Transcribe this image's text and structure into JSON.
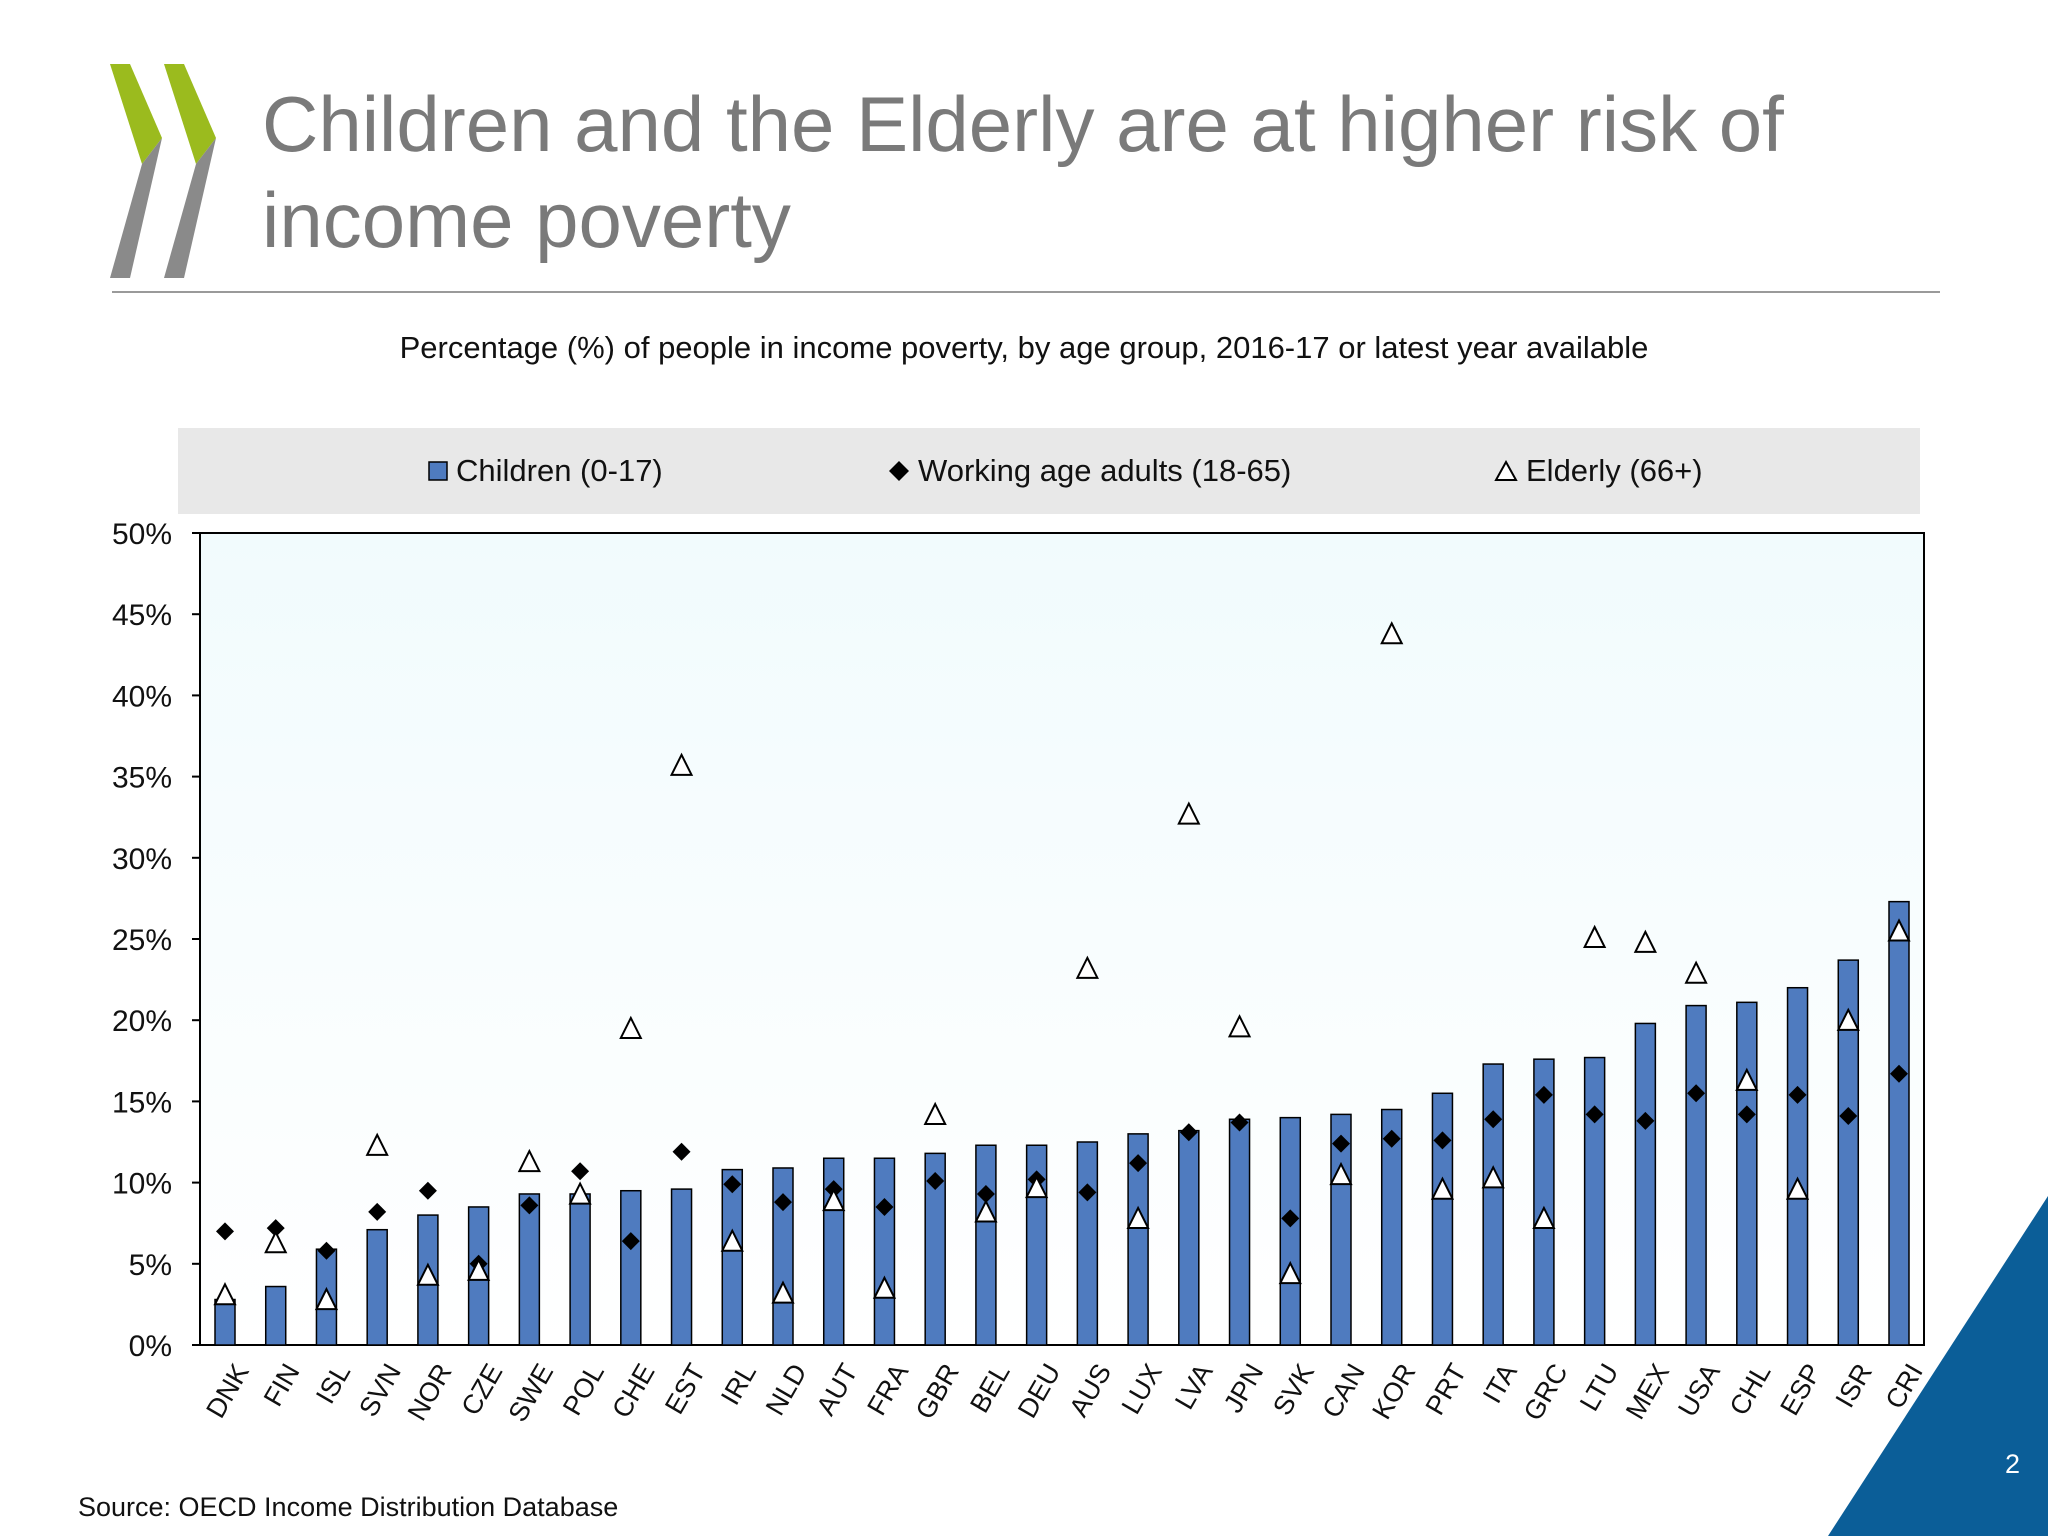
{
  "slide": {
    "title": "Children and the Elderly are at higher risk of income poverty",
    "source": "Source: OECD Income Distribution Database",
    "page_number": "2",
    "colors": {
      "title": "#7a7a7a",
      "logo_green": "#9bbb1e",
      "logo_grey": "#8a8a8a",
      "corner_blue": "#0b5e98"
    }
  },
  "chart_data": {
    "type": "bar",
    "title": "Percentage (%) of people in income poverty, by age group, 2016-17 or latest year available",
    "xlabel": "",
    "ylabel": "",
    "ylim": [
      0,
      50
    ],
    "yticks": [
      "0%",
      "5%",
      "10%",
      "15%",
      "20%",
      "25%",
      "30%",
      "35%",
      "40%",
      "45%",
      "50%"
    ],
    "grid": false,
    "legend_position": "top",
    "categories": [
      "DNK",
      "FIN",
      "ISL",
      "SVN",
      "NOR",
      "CZE",
      "SWE",
      "POL",
      "CHE",
      "EST",
      "IRL",
      "NLD",
      "AUT",
      "FRA",
      "GBR",
      "BEL",
      "DEU",
      "AUS",
      "LUX",
      "LVA",
      "JPN",
      "SVK",
      "CAN",
      "KOR",
      "PRT",
      "ITA",
      "GRC",
      "LTU",
      "MEX",
      "USA",
      "CHL",
      "ESP",
      "ISR",
      "CRI"
    ],
    "series": [
      {
        "name": "Children (0-17)",
        "type": "bar",
        "color": "#4f7bbf",
        "values": [
          2.8,
          3.6,
          5.9,
          7.1,
          8.0,
          8.5,
          9.3,
          9.3,
          9.5,
          9.6,
          10.8,
          10.9,
          11.5,
          11.5,
          11.8,
          12.3,
          12.3,
          12.5,
          13.0,
          13.2,
          13.9,
          14.0,
          14.2,
          14.5,
          15.5,
          17.3,
          17.6,
          17.7,
          19.8,
          20.9,
          21.1,
          22.0,
          23.7,
          27.3
        ]
      },
      {
        "name": "Working age adults (18-65)",
        "type": "marker-diamond",
        "color": "#000000",
        "values": [
          7.0,
          7.2,
          5.8,
          8.2,
          9.5,
          5.0,
          8.6,
          10.7,
          6.4,
          11.9,
          9.9,
          8.8,
          9.6,
          8.5,
          10.1,
          9.3,
          10.2,
          9.4,
          11.2,
          13.1,
          13.7,
          7.8,
          12.4,
          12.7,
          12.6,
          13.9,
          15.4,
          14.2,
          13.8,
          15.5,
          14.2,
          15.4,
          14.1,
          16.7
        ]
      },
      {
        "name": "Elderly (66+)",
        "type": "marker-triangle",
        "color": "#ffffff",
        "values": [
          3.0,
          6.2,
          2.7,
          12.2,
          4.2,
          4.5,
          11.2,
          9.2,
          19.4,
          35.6,
          6.3,
          3.1,
          8.8,
          3.4,
          14.1,
          8.1,
          9.6,
          23.1,
          7.7,
          32.6,
          19.5,
          4.3,
          10.4,
          43.7,
          9.5,
          10.2,
          7.7,
          25.0,
          24.7,
          22.8,
          16.2,
          9.5,
          19.9,
          25.4
        ]
      }
    ]
  }
}
